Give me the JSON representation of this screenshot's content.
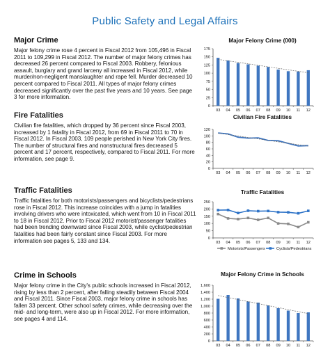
{
  "page": {
    "title": "Public Safety and Legal Affairs"
  },
  "sections": [
    {
      "heading": "Major Crime",
      "body": "Major felony crime rose 4 percent in Fiscal 2012 from 105,496 in Fiscal 2011 to 109,299 in Fiscal 2012. The number of major felony crimes has decreased 26 percent compared to Fiscal 2003. Robbery, felonious assault, burglary and grand larceny all increased in Fiscal 2012, while murder/non-negligent manslaughter and rape fell.  Murder decreased 10 percent compared to Fiscal 2011. All types of major felony crimes decreased significantly over the past five years and 10 years. See page 3 for more information."
    },
    {
      "heading": "Fire Fatalities",
      "body": "Civilian fire fatalities, which dropped by 36 percent since Fiscal 2003, increased by 1 fatality in Fiscal 2012, from 69 in Fiscal 2011 to 70 in Fiscal 2012. In Fiscal 2003, 109 people perished in New York City fires. The number of structural fires and nonstructural fires decreased 5 percent and 17 percent, respectively, compared to Fiscal 2011. For more information, see page 9."
    },
    {
      "heading": "Traffic Fatalities",
      "body": "Traffic fatalities for both motorists/passengers and bicyclists/pedestrians rose in Fiscal 2012. This increase coincides with a jump in fatalities involving drivers who were intoxicated, which went from 10 in Fiscal 2011 to 18 in Fiscal 2012. Prior to Fiscal 2012 motorist/passenger fatalities had been trending downward since Fiscal 2003, while cyclist/pedestrian fatalities had been fairly constant since Fiscal 2003. For more information see pages 5, 133 and 134."
    },
    {
      "heading": "Crime in Schools",
      "body": "Major felony crime in the City's public schools increased in Fiscal 2012, rising by less than 2 percent, after falling steadily between Fiscal 2004 and Fiscal 2011. Since Fiscal 2003, major felony crime in schools has fallen 33 percent. Other school safety crimes, while decreasing over the mid- and long-term, were also up in Fiscal 2012. For more information, see pages 4 and 114."
    }
  ],
  "chart_data": [
    {
      "type": "bar",
      "title": "Major Felony Crime (000)",
      "categories": [
        "03",
        "04",
        "05",
        "06",
        "07",
        "08",
        "09",
        "10",
        "11",
        "12"
      ],
      "values": [
        147,
        139,
        131,
        127,
        123,
        119,
        111,
        106,
        105,
        109
      ],
      "yticks": [
        "0",
        "25",
        "50",
        "75",
        "100",
        "125",
        "150",
        "175"
      ],
      "ylim": [
        0,
        175
      ],
      "trendline": true,
      "color": "#3f76c0"
    },
    {
      "type": "line",
      "title": "Civilian Fire Fatalities",
      "categories": [
        "03",
        "04",
        "05",
        "06",
        "07",
        "08",
        "09",
        "10",
        "11",
        "12"
      ],
      "values": [
        109,
        106,
        96,
        93,
        94,
        86,
        85,
        77,
        69,
        70
      ],
      "yticks": [
        "0",
        "20",
        "40",
        "60",
        "80",
        "100",
        "120"
      ],
      "ylim": [
        0,
        120
      ],
      "trendline": true,
      "color": "#3f76c0"
    },
    {
      "type": "line",
      "title": "Traffic Fatalities",
      "categories": [
        "03",
        "04",
        "05",
        "06",
        "07",
        "08",
        "09",
        "10",
        "11",
        "12"
      ],
      "yticks": [
        "0",
        "50",
        "100",
        "150",
        "200",
        "250"
      ],
      "ylim": [
        0,
        250
      ],
      "legend": "bottom",
      "series": [
        {
          "name": "Motorists/Passengers",
          "color": "#8a8a8a",
          "values": [
            165,
            135,
            130,
            138,
            125,
            138,
            100,
            97,
            75,
            108
          ]
        },
        {
          "name": "Cyclists/Pedestrians",
          "color": "#2f74c8",
          "values": [
            192,
            193,
            172,
            188,
            185,
            186,
            178,
            177,
            170,
            187
          ]
        }
      ]
    },
    {
      "type": "bar",
      "title": "Major Felony Crime in Schools",
      "categories": [
        "03",
        "04",
        "05",
        "06",
        "07",
        "08",
        "09",
        "10",
        "11",
        "12"
      ],
      "values": [
        1210,
        1320,
        1220,
        1130,
        1100,
        1020,
        940,
        870,
        800,
        820
      ],
      "yticks": [
        "0",
        "200",
        "400",
        "600",
        "800",
        "1,000",
        "1,200",
        "1,400",
        "1,600"
      ],
      "ylim": [
        0,
        1600
      ],
      "trendline": true,
      "color": "#3f76c0"
    }
  ]
}
